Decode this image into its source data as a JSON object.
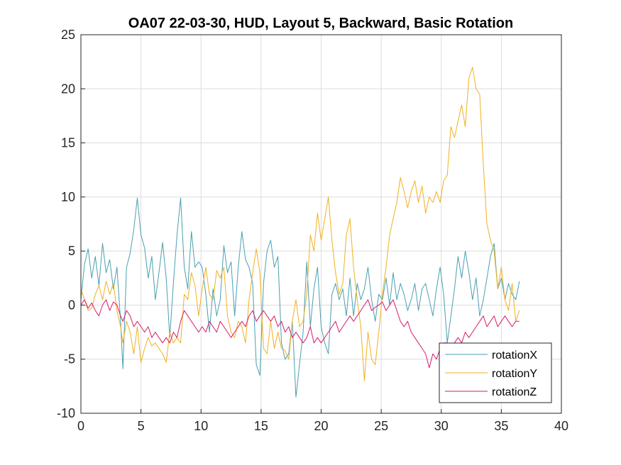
{
  "chart_data": {
    "type": "line",
    "title": "OA07 22-03-30, HUD, Layout 5, Backward, Basic Rotation",
    "xlabel": "",
    "ylabel": "",
    "xlim": [
      0,
      40
    ],
    "ylim": [
      -10,
      25
    ],
    "xticks": [
      0,
      5,
      10,
      15,
      20,
      25,
      30,
      35,
      40
    ],
    "yticks": [
      -10,
      -5,
      0,
      5,
      10,
      15,
      20,
      25
    ],
    "xtick_labels": [
      "0",
      "5",
      "10",
      "15",
      "20",
      "25",
      "30",
      "35",
      "40"
    ],
    "ytick_labels": [
      "-10",
      "-5",
      "0",
      "5",
      "10",
      "15",
      "20",
      "25"
    ],
    "grid": true,
    "legend_position": "bottom-right",
    "series": [
      {
        "name": "rotationX",
        "color": "#4a9fb0",
        "x": [
          0,
          0.3,
          0.6,
          0.9,
          1.2,
          1.5,
          1.8,
          2.1,
          2.4,
          2.7,
          3.0,
          3.3,
          3.5,
          3.8,
          4.1,
          4.4,
          4.7,
          5.0,
          5.3,
          5.6,
          5.9,
          6.2,
          6.5,
          6.8,
          7.1,
          7.4,
          7.7,
          8.0,
          8.3,
          8.6,
          8.9,
          9.2,
          9.5,
          9.8,
          10.1,
          10.4,
          10.7,
          11.0,
          11.3,
          11.6,
          11.9,
          12.2,
          12.5,
          12.8,
          13.1,
          13.4,
          13.7,
          14.0,
          14.3,
          14.6,
          14.9,
          15.2,
          15.5,
          15.8,
          16.1,
          16.4,
          16.7,
          17.0,
          17.3,
          17.6,
          17.9,
          18.2,
          18.5,
          18.8,
          19.1,
          19.4,
          19.7,
          20.0,
          20.3,
          20.6,
          20.9,
          21.2,
          21.5,
          21.8,
          22.1,
          22.4,
          22.7,
          23.0,
          23.3,
          23.6,
          23.9,
          24.2,
          24.5,
          24.8,
          25.1,
          25.4,
          25.7,
          26.0,
          26.3,
          26.6,
          26.9,
          27.2,
          27.5,
          27.8,
          28.1,
          28.4,
          28.7,
          29.0,
          29.3,
          29.6,
          29.9,
          30.2,
          30.5,
          30.8,
          31.1,
          31.4,
          31.7,
          32.0,
          32.3,
          32.6,
          32.9,
          33.2,
          33.5,
          33.8,
          34.1,
          34.4,
          34.7,
          35.0,
          35.3,
          35.6,
          35.9,
          36.2,
          36.5
        ],
        "values": [
          0.5,
          3.8,
          5.2,
          2.5,
          4.5,
          1.8,
          5.7,
          3.0,
          4.2,
          1.5,
          3.5,
          -1.5,
          -5.9,
          3.5,
          4.8,
          7.0,
          9.9,
          6.5,
          5.3,
          2.5,
          4.5,
          0.5,
          3.0,
          5.8,
          2.5,
          -3.0,
          2.0,
          6.5,
          9.9,
          3.5,
          1.5,
          6.8,
          3.5,
          4.0,
          3.5,
          1.0,
          -2.5,
          1.5,
          -1.0,
          0.5,
          5.5,
          3.0,
          4.0,
          -1.0,
          3.5,
          6.8,
          4.2,
          3.5,
          2.0,
          -5.5,
          -6.5,
          2.0,
          5.0,
          6.0,
          3.5,
          4.5,
          -3.5,
          -5.0,
          -4.5,
          -1.5,
          -8.5,
          -5.5,
          -2.5,
          4.0,
          -2.0,
          1.5,
          3.5,
          -2.0,
          -3.5,
          -4.5,
          1.0,
          2.0,
          0.5,
          1.5,
          -1.0,
          2.5,
          -1.0,
          2.0,
          0.5,
          1.5,
          3.5,
          0.5,
          -1.5,
          1.0,
          0.5,
          2.5,
          0.0,
          3.0,
          0.5,
          2.0,
          1.0,
          -0.5,
          0.5,
          2.0,
          -0.5,
          1.5,
          2.0,
          0.5,
          -1.0,
          1.5,
          3.5,
          1.0,
          -3.5,
          -1.0,
          1.5,
          4.5,
          2.5,
          5.0,
          3.0,
          0.5,
          2.5,
          -1.0,
          0.5,
          2.5,
          4.5,
          5.7,
          1.5,
          2.5,
          0.5,
          2.0,
          1.0,
          0.5,
          2.2
        ]
      },
      {
        "name": "rotationY",
        "color": "#f0b020",
        "x": [
          0,
          0.3,
          0.6,
          0.9,
          1.2,
          1.5,
          1.8,
          2.1,
          2.4,
          2.7,
          3.0,
          3.3,
          3.5,
          3.8,
          4.1,
          4.4,
          4.7,
          5.0,
          5.3,
          5.6,
          5.9,
          6.2,
          6.5,
          6.8,
          7.1,
          7.4,
          7.7,
          8.0,
          8.3,
          8.6,
          8.9,
          9.2,
          9.5,
          9.8,
          10.1,
          10.4,
          10.7,
          11.0,
          11.3,
          11.6,
          11.9,
          12.2,
          12.5,
          12.8,
          13.1,
          13.4,
          13.7,
          14.0,
          14.3,
          14.6,
          14.9,
          15.2,
          15.5,
          15.8,
          16.1,
          16.4,
          16.7,
          17.0,
          17.3,
          17.6,
          17.9,
          18.2,
          18.5,
          18.8,
          19.1,
          19.4,
          19.7,
          20.0,
          20.3,
          20.6,
          20.9,
          21.2,
          21.5,
          21.8,
          22.1,
          22.4,
          22.7,
          23.0,
          23.3,
          23.6,
          23.9,
          24.2,
          24.5,
          24.8,
          25.1,
          25.4,
          25.7,
          26.0,
          26.3,
          26.6,
          26.9,
          27.2,
          27.5,
          27.8,
          28.1,
          28.4,
          28.7,
          29.0,
          29.3,
          29.6,
          29.9,
          30.2,
          30.5,
          30.8,
          31.1,
          31.4,
          31.7,
          32.0,
          32.3,
          32.6,
          32.9,
          33.2,
          33.5,
          33.8,
          34.1,
          34.4,
          34.7,
          35.0,
          35.3,
          35.6,
          35.9,
          36.2,
          36.5
        ],
        "values": [
          1.5,
          0.5,
          -0.5,
          -0.3,
          1.0,
          1.8,
          0.5,
          2.2,
          1.0,
          2.0,
          -0.5,
          -2.0,
          -3.5,
          -1.5,
          -2.5,
          -4.5,
          -2.0,
          -5.3,
          -4.0,
          -3.0,
          -3.8,
          -3.5,
          -4.0,
          -4.5,
          -5.3,
          -2.5,
          -3.5,
          -3.0,
          -3.5,
          1.0,
          0.5,
          3.0,
          1.8,
          -1.0,
          1.5,
          3.5,
          1.0,
          0.5,
          3.2,
          2.5,
          3.5,
          -1.0,
          -2.5,
          -3.0,
          -1.5,
          -2.0,
          -3.5,
          0.5,
          3.0,
          5.2,
          3.0,
          -4.0,
          -4.5,
          -1.5,
          -4.0,
          -2.5,
          -4.0,
          -4.2,
          -5.0,
          -1.5,
          0.5,
          -2.0,
          -1.5,
          1.0,
          6.5,
          5.0,
          8.5,
          6.0,
          8.0,
          10.0,
          6.0,
          3.0,
          1.0,
          2.0,
          6.5,
          8.0,
          3.5,
          0.5,
          -2.0,
          -7.0,
          -2.5,
          -5.0,
          -5.5,
          -2.5,
          1.0,
          3.5,
          6.5,
          8.0,
          9.5,
          11.8,
          10.5,
          9.0,
          10.5,
          11.5,
          9.5,
          11.0,
          8.5,
          10.0,
          9.5,
          10.5,
          9.5,
          11.5,
          12.0,
          16.5,
          15.5,
          17.0,
          18.5,
          16.5,
          21.0,
          22.0,
          20.0,
          19.5,
          13.0,
          7.5,
          6.0,
          5.0,
          1.5,
          3.5,
          0.5,
          -0.5,
          2.0,
          -1.5,
          -0.5
        ]
      },
      {
        "name": "rotationZ",
        "color": "#d81b6a",
        "x": [
          0,
          0.3,
          0.6,
          0.9,
          1.2,
          1.5,
          1.8,
          2.1,
          2.4,
          2.7,
          3.0,
          3.3,
          3.5,
          3.8,
          4.1,
          4.4,
          4.7,
          5.0,
          5.3,
          5.6,
          5.9,
          6.2,
          6.5,
          6.8,
          7.1,
          7.4,
          7.7,
          8.0,
          8.3,
          8.6,
          8.9,
          9.2,
          9.5,
          9.8,
          10.1,
          10.4,
          10.7,
          11.0,
          11.3,
          11.6,
          11.9,
          12.2,
          12.5,
          12.8,
          13.1,
          13.4,
          13.7,
          14.0,
          14.3,
          14.6,
          14.9,
          15.2,
          15.5,
          15.8,
          16.1,
          16.4,
          16.7,
          17.0,
          17.3,
          17.6,
          17.9,
          18.2,
          18.5,
          18.8,
          19.1,
          19.4,
          19.7,
          20.0,
          20.3,
          20.6,
          20.9,
          21.2,
          21.5,
          21.8,
          22.1,
          22.4,
          22.7,
          23.0,
          23.3,
          23.6,
          23.9,
          24.2,
          24.5,
          24.8,
          25.1,
          25.4,
          25.7,
          26.0,
          26.3,
          26.6,
          26.9,
          27.2,
          27.5,
          27.8,
          28.1,
          28.4,
          28.7,
          29.0,
          29.3,
          29.6,
          29.9,
          30.2,
          30.5,
          30.8,
          31.1,
          31.4,
          31.7,
          32.0,
          32.3,
          32.6,
          32.9,
          33.2,
          33.5,
          33.8,
          34.1,
          34.4,
          34.7,
          35.0,
          35.3,
          35.6,
          35.9,
          36.2,
          36.5
        ],
        "values": [
          0.0,
          0.5,
          -0.3,
          0.2,
          -0.5,
          -1.0,
          0.0,
          0.5,
          -0.5,
          0.3,
          0.0,
          -1.0,
          -1.5,
          -0.5,
          -1.0,
          -2.0,
          -1.5,
          -2.0,
          -2.5,
          -2.0,
          -3.0,
          -2.5,
          -3.0,
          -3.5,
          -3.0,
          -3.5,
          -2.5,
          -3.0,
          -1.5,
          -0.5,
          -1.0,
          -1.5,
          -2.0,
          -2.5,
          -2.0,
          -2.5,
          -1.5,
          -2.0,
          -2.5,
          -1.5,
          -2.0,
          -2.5,
          -3.0,
          -2.5,
          -2.0,
          -1.5,
          -2.0,
          -1.0,
          -0.5,
          -1.5,
          -1.0,
          -0.5,
          -1.0,
          -1.5,
          -1.0,
          -2.0,
          -1.5,
          -2.5,
          -2.0,
          -3.0,
          -2.5,
          -3.0,
          -3.5,
          -3.0,
          -2.0,
          -3.5,
          -3.0,
          -3.5,
          -3.0,
          -2.5,
          -2.0,
          -1.5,
          -2.5,
          -2.0,
          -1.5,
          -1.0,
          -1.5,
          -1.0,
          -0.5,
          0.0,
          0.5,
          -0.5,
          -0.2,
          0.0,
          0.3,
          -0.5,
          0.0,
          0.5,
          -0.5,
          -1.5,
          -2.0,
          -1.5,
          -2.5,
          -3.0,
          -3.5,
          -4.0,
          -4.5,
          -5.8,
          -4.5,
          -5.0,
          -4.0,
          -3.5,
          -3.5,
          -4.0,
          -3.5,
          -3.0,
          -3.5,
          -2.5,
          -3.0,
          -2.5,
          -2.0,
          -1.5,
          -1.0,
          -2.0,
          -1.5,
          -1.0,
          -2.0,
          -1.5,
          -1.0,
          -1.5,
          -2.0,
          -1.5,
          -1.5
        ]
      }
    ]
  }
}
